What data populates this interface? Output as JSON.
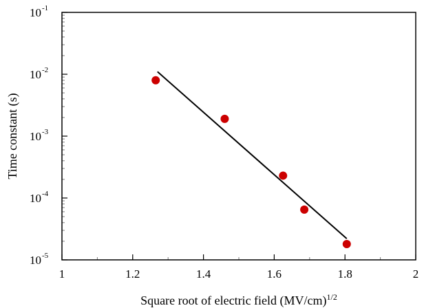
{
  "chart_data": {
    "type": "scatter",
    "xlabel": "Square root of electric  field  (MV/cm)",
    "xlabel_exponent": "1/2",
    "ylabel": "Time constant (s)",
    "xlim": [
      1,
      2
    ],
    "ylim": [
      1e-05,
      0.1
    ],
    "y_scale": "log",
    "x_ticks": [
      {
        "value": 1,
        "label": "1"
      },
      {
        "value": 1.2,
        "label": "1.2"
      },
      {
        "value": 1.4,
        "label": "1.4"
      },
      {
        "value": 1.6,
        "label": "1.6"
      },
      {
        "value": 1.8,
        "label": "1.8"
      },
      {
        "value": 2,
        "label": "2"
      }
    ],
    "y_ticks": [
      {
        "value": 0.1,
        "base": "10",
        "exponent": "-1"
      },
      {
        "value": 0.01,
        "base": "10",
        "exponent": "-2"
      },
      {
        "value": 0.001,
        "base": "10",
        "exponent": "-3"
      },
      {
        "value": 0.0001,
        "base": "10",
        "exponent": "-4"
      },
      {
        "value": 1e-05,
        "base": "10",
        "exponent": "-5"
      }
    ],
    "points": [
      {
        "x": 1.265,
        "y": 0.008
      },
      {
        "x": 1.46,
        "y": 0.0019
      },
      {
        "x": 1.625,
        "y": 0.00023
      },
      {
        "x": 1.685,
        "y": 6.5e-05
      },
      {
        "x": 1.805,
        "y": 1.8e-05
      }
    ],
    "fit_line": [
      {
        "x": 1.27,
        "y": 0.011
      },
      {
        "x": 1.805,
        "y": 2.2e-05
      }
    ],
    "grid": false,
    "legend": "none",
    "colors": {
      "points": "#cc0000",
      "fit_line": "#000000",
      "axes": "#000000"
    }
  }
}
